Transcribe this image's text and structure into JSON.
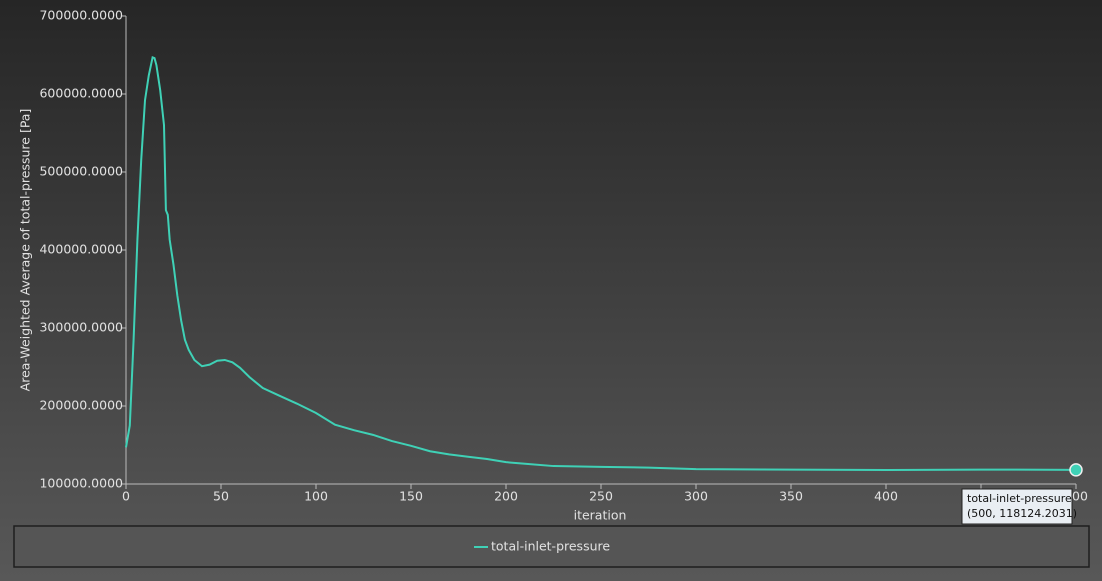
{
  "chart_data": {
    "type": "line",
    "xlabel": "iteration",
    "ylabel": "Area-Weighted Average of total-pressure [Pa]",
    "x": [
      0,
      2,
      4,
      6,
      8,
      10,
      12,
      14,
      15,
      16,
      18,
      20,
      21,
      22,
      23,
      25,
      27,
      29,
      31,
      33,
      36,
      40,
      44,
      48,
      52,
      56,
      60,
      65,
      72,
      80,
      90,
      100,
      110,
      120,
      130,
      140,
      150,
      160,
      170,
      180,
      190,
      200,
      210,
      225,
      250,
      275,
      300,
      350,
      400,
      450,
      500
    ],
    "series": [
      {
        "name": "total-inlet-pressure",
        "color": "#3fd1b6",
        "values": [
          147000,
          175000,
          285000,
          413000,
          515000,
          592000,
          624000,
          647000,
          646000,
          637000,
          605000,
          560000,
          451000,
          445000,
          413000,
          381000,
          342000,
          310000,
          285000,
          272000,
          259000,
          251000,
          253000,
          258000,
          259000,
          256000,
          249000,
          237000,
          223000,
          214000,
          203000,
          191000,
          176000,
          169000,
          163000,
          155000,
          149000,
          142000,
          138000,
          135000,
          132000,
          128000,
          126000,
          123000,
          122000,
          121000,
          119000,
          118500,
          118000,
          118500,
          118124.2031
        ]
      }
    ],
    "xlim": [
      0,
      500
    ],
    "xticks": [
      0,
      50,
      100,
      150,
      200,
      250,
      300,
      350,
      400,
      450,
      500
    ],
    "ylim": [
      100000,
      700000
    ],
    "yticks": [
      {
        "value": 100000,
        "label": "100000.0000"
      },
      {
        "value": 200000,
        "label": "200000.0000"
      },
      {
        "value": 300000,
        "label": "300000.0000"
      },
      {
        "value": 400000,
        "label": "400000.0000"
      },
      {
        "value": 500000,
        "label": "500000.0000"
      },
      {
        "value": 600000,
        "label": "600000.0000"
      },
      {
        "value": 700000,
        "label": "700000.0000"
      }
    ],
    "legend": "bottom",
    "tooltip": {
      "series": "total-inlet-pressure",
      "x": 500,
      "y": 118124.2031,
      "label": "(500, 118124.2031)"
    }
  }
}
